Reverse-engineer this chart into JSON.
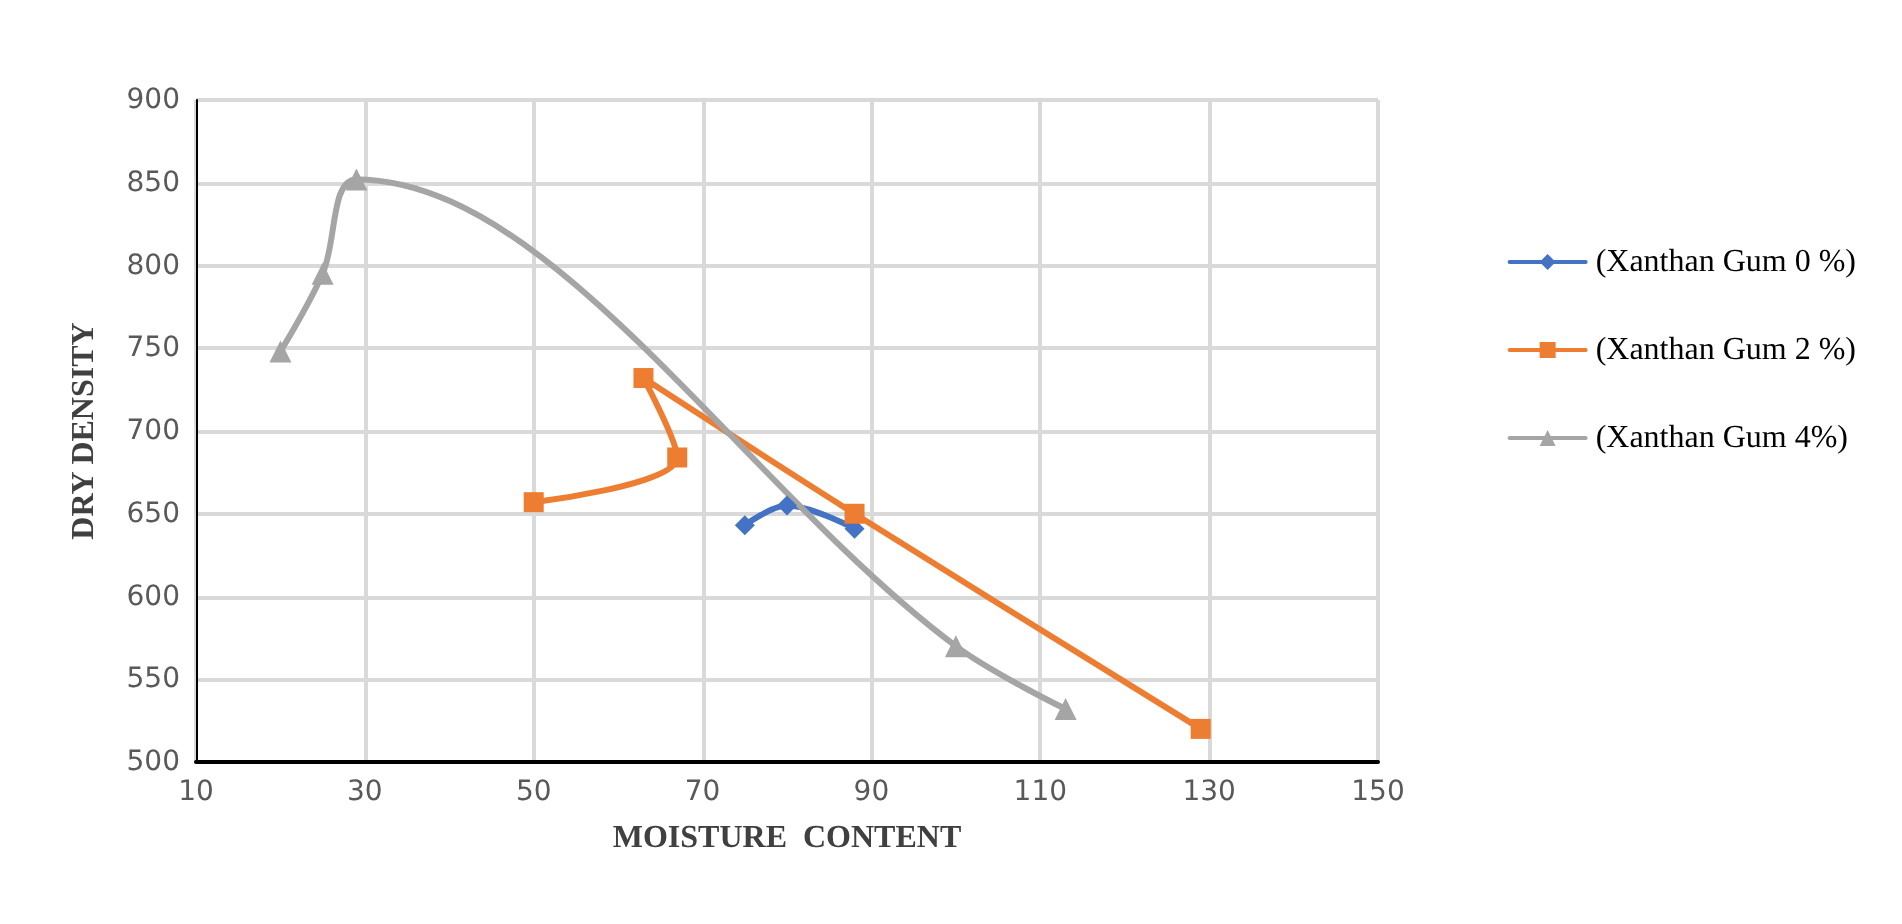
{
  "chart_data": {
    "type": "line",
    "xlabel": "MOISTURE  CONTENT",
    "ylabel": "DRY DENSITY",
    "xlim": [
      10,
      150
    ],
    "xticks": [
      10,
      30,
      50,
      70,
      90,
      110,
      130,
      150
    ],
    "ylim": [
      500,
      900
    ],
    "yticks": [
      500,
      550,
      600,
      650,
      700,
      750,
      800,
      850,
      900
    ],
    "grid": true,
    "legend": "right",
    "line_style": "solid",
    "series": [
      {
        "name": "(Xanthan Gum 0 %)",
        "color": "#4472c4",
        "marker": "diamond",
        "x": [
          75,
          80,
          88
        ],
        "values": [
          643,
          655,
          641
        ]
      },
      {
        "name": "(Xanthan Gum 2 %)",
        "color": "#ed7d31",
        "marker": "square",
        "x": [
          50,
          67,
          63,
          88,
          129
        ],
        "values": [
          657,
          684,
          732,
          650,
          520
        ]
      },
      {
        "name": "(Xanthan Gum 4%)",
        "color": "#a5a5a5",
        "marker": "triangle",
        "x": [
          20,
          25,
          29,
          100,
          113
        ],
        "values": [
          748,
          795,
          852,
          570,
          532
        ]
      }
    ]
  }
}
